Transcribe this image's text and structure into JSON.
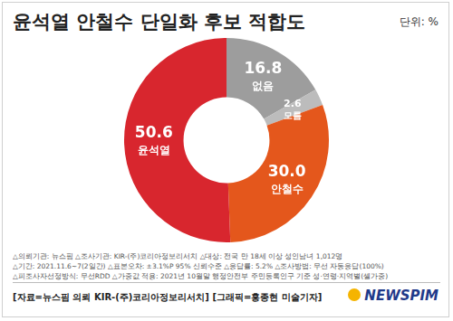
{
  "chart_data": {
    "type": "doughnut",
    "title": "윤석열 안철수 단일화 후보 적합도",
    "annotations": [
      "단위: %"
    ],
    "categories": [
      "없음",
      "모름",
      "안철수",
      "윤석열"
    ],
    "values": [
      16.8,
      2.6,
      30.0,
      50.6
    ],
    "value_labels": [
      "16.8",
      "2.6",
      "30.0",
      "50.6"
    ],
    "colors": [
      "#9d9d9d",
      "#bcbcbc",
      "#e4571c",
      "#d8262e"
    ],
    "data_labels": true,
    "footnotes": [
      "△의뢰기관: 뉴스핌 △조사기관: KIR-(주)코리아정보리서치 △대상: 전국 만 18세 이상 성인남녀 1,012명",
      "△기간: 2021.11.6~7(2일간) △표본오차: ±3.1%P 95% 신뢰수준 △응답률: 5.2% △조사방법: 무선 자동응답(100%)",
      "△피조사자선정방식: 무선RDD △가중값 적용: 2021년 10월말 행정안전부 주민등록인구 기준 성·연령·지역별(셀가중)"
    ],
    "source": "[자료=뉴스핌 의뢰 KIR-(주)코리아정보리서치] [그래픽=홍종현 미술기자]",
    "logo": "NEWSPIM"
  }
}
